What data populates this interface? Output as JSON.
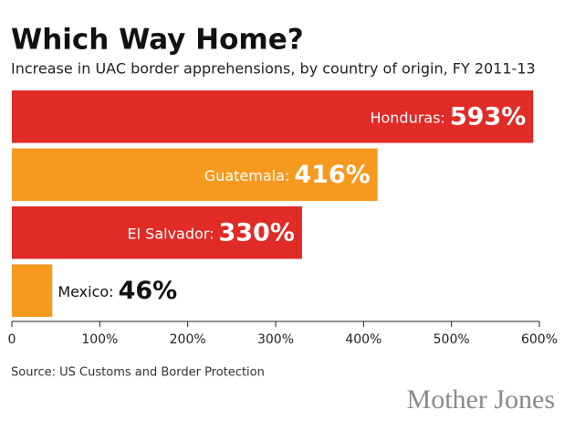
{
  "chart_data": {
    "type": "bar",
    "orientation": "horizontal",
    "title": "Which Way Home?",
    "subtitle": "Increase in UAC border apprehensions, by country of origin, FY 2011-13",
    "categories": [
      "Honduras:",
      "Guatemala:",
      "El Salvador:",
      "Mexico:"
    ],
    "values": [
      593,
      416,
      330,
      46
    ],
    "value_labels": [
      "593%",
      "416%",
      "330%",
      "46%"
    ],
    "colors": [
      "#e02b27",
      "#f6991f",
      "#e02b27",
      "#f6991f"
    ],
    "xlim": [
      0,
      600
    ],
    "xticks": [
      0,
      {
        "value": 100,
        "label": "100%"
      },
      {
        "value": 200,
        "label": "200%"
      },
      {
        "value": 300,
        "label": "300%"
      },
      {
        "value": 400,
        "label": "400%"
      },
      {
        "value": 500,
        "label": "500%"
      },
      {
        "value": 600,
        "label": "600%"
      }
    ],
    "source": "Source: US Customs and Border Protection",
    "logo": "Mother Jones"
  }
}
